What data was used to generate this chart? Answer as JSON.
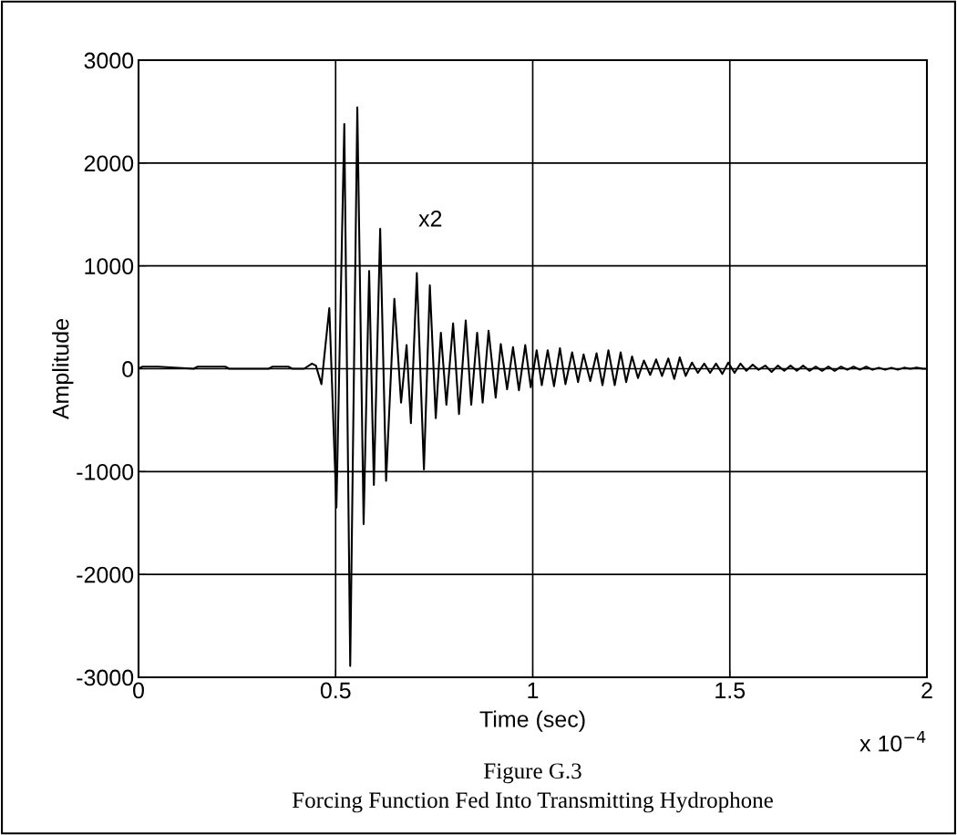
{
  "chart_data": {
    "type": "line",
    "xlabel": "Time (sec)",
    "ylabel": "Amplitude",
    "x": [
      0,
      0.01,
      0.05,
      0.14,
      0.15,
      0.22,
      0.23,
      0.33,
      0.34,
      0.38,
      0.39,
      0.42,
      0.44,
      0.45,
      0.464,
      0.484,
      0.502,
      0.522,
      0.537,
      0.555,
      0.571,
      0.585,
      0.597,
      0.613,
      0.628,
      0.649,
      0.666,
      0.68,
      0.691,
      0.706,
      0.724,
      0.739,
      0.754,
      0.767,
      0.781,
      0.798,
      0.813,
      0.83,
      0.844,
      0.859,
      0.873,
      0.888,
      0.906,
      0.919,
      0.935,
      0.95,
      0.965,
      0.981,
      0.995,
      1.01,
      1.023,
      1.038,
      1.054,
      1.069,
      1.083,
      1.1,
      1.115,
      1.129,
      1.146,
      1.162,
      1.177,
      1.192,
      1.208,
      1.223,
      1.237,
      1.252,
      1.267,
      1.282,
      1.298,
      1.313,
      1.328,
      1.344,
      1.359,
      1.373,
      1.388,
      1.404,
      1.419,
      1.435,
      1.45,
      1.465,
      1.481,
      1.496,
      1.512,
      1.527,
      1.542,
      1.558,
      1.573,
      1.59,
      1.606,
      1.622,
      1.638,
      1.654,
      1.67,
      1.686,
      1.702,
      1.718,
      1.734,
      1.75,
      1.766,
      1.782,
      1.798,
      1.814,
      1.83,
      1.846,
      1.862,
      1.878,
      1.894,
      1.91,
      1.926,
      1.942,
      1.958,
      1.974,
      1.99,
      2
    ],
    "values": [
      0,
      20,
      20,
      0,
      20,
      20,
      0,
      0,
      20,
      20,
      0,
      0,
      50,
      30,
      -150,
      590,
      -1350,
      2380,
      -2890,
      2540,
      -1510,
      950,
      -1130,
      1360,
      -1090,
      680,
      -330,
      230,
      -530,
      930,
      -980,
      810,
      -480,
      350,
      -350,
      440,
      -440,
      470,
      -350,
      350,
      -330,
      370,
      -280,
      240,
      -200,
      210,
      -210,
      230,
      -180,
      180,
      -160,
      180,
      -170,
      200,
      -150,
      160,
      -130,
      140,
      -120,
      150,
      -160,
      180,
      -160,
      160,
      -130,
      120,
      -90,
      80,
      -60,
      90,
      -70,
      100,
      -100,
      110,
      -70,
      60,
      -40,
      50,
      -40,
      50,
      -50,
      60,
      -40,
      50,
      -20,
      40,
      -10,
      30,
      -30,
      30,
      -20,
      30,
      -20,
      30,
      -20,
      20,
      -20,
      20,
      -20,
      20,
      -10,
      20,
      -10,
      20,
      -10,
      10,
      -10,
      10,
      -10,
      10,
      0,
      10,
      0,
      0
    ],
    "color": "#000000",
    "line_style": "solid",
    "marker": "none",
    "grid": true,
    "xlim": [
      0,
      2
    ],
    "xticks": [
      0,
      0.5,
      1,
      1.5,
      2
    ],
    "ylim": [
      -3000,
      3000
    ],
    "yticks": [
      -3000,
      -2000,
      -1000,
      0,
      1000,
      2000,
      3000
    ],
    "annotations": [
      "x2",
      "x 10$^{−4}$",
      "Figure G.3",
      "Forcing Function Fed Into Transmitting Hydrophone"
    ]
  }
}
